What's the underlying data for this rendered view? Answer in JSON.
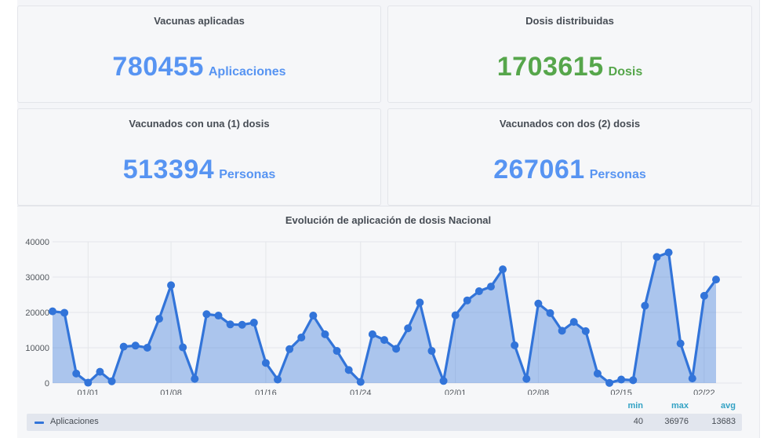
{
  "stat_panels": [
    {
      "title": "Vacunas aplicadas",
      "value": "780455",
      "unit": "Aplicaciones",
      "color": "#5794f2"
    },
    {
      "title": "Dosis distribuidas",
      "value": "1703615",
      "unit": "Dosis",
      "color": "#56a64b"
    },
    {
      "title": "Vacunados con una (1) dosis",
      "value": "513394",
      "unit": "Personas",
      "color": "#5794f2"
    },
    {
      "title": "Vacunados con dos (2) dosis",
      "value": "267061",
      "unit": "Personas",
      "color": "#5794f2"
    }
  ],
  "chart_panel": {
    "title": "Evolución de aplicación de dosis Nacional",
    "legend": {
      "series_label": "Aplicaciones",
      "headers": {
        "min": "min",
        "max": "max",
        "avg": "avg"
      },
      "values": {
        "min": "40",
        "max": "36976",
        "avg": "13683"
      }
    }
  },
  "chart_data": {
    "type": "area",
    "title": "Evolución de aplicación de dosis Nacional",
    "xlabel": "",
    "ylabel": "",
    "ylim": [
      0,
      40000
    ],
    "yticks": [
      0,
      10000,
      20000,
      30000,
      40000
    ],
    "xtick_labels": [
      "01/01",
      "01/08",
      "01/16",
      "01/24",
      "02/01",
      "02/08",
      "02/15",
      "02/22"
    ],
    "grid": true,
    "legend_position": "bottom",
    "series": [
      {
        "name": "Aplicaciones",
        "color": "#3274d9",
        "x": [
          "12/29",
          "12/30",
          "12/31",
          "01/01",
          "01/02",
          "01/03",
          "01/04",
          "01/05",
          "01/06",
          "01/07",
          "01/08",
          "01/09",
          "01/10",
          "01/11",
          "01/12",
          "01/13",
          "01/14",
          "01/15",
          "01/16",
          "01/17",
          "01/18",
          "01/19",
          "01/20",
          "01/21",
          "01/22",
          "01/23",
          "01/24",
          "01/25",
          "01/26",
          "01/27",
          "01/28",
          "01/29",
          "01/30",
          "01/31",
          "02/01",
          "02/02",
          "02/03",
          "02/04",
          "02/05",
          "02/06",
          "02/07",
          "02/08",
          "02/09",
          "02/10",
          "02/11",
          "02/12",
          "02/13",
          "02/14",
          "02/15",
          "02/16",
          "02/17",
          "02/18",
          "02/19",
          "02/20",
          "02/21",
          "02/22",
          "02/23"
        ],
        "values": [
          20300,
          19900,
          2700,
          100,
          3200,
          500,
          10300,
          10600,
          10000,
          18200,
          27700,
          10100,
          1200,
          19500,
          19100,
          16600,
          16500,
          17100,
          5700,
          1000,
          9600,
          12900,
          19100,
          13800,
          9100,
          3700,
          300,
          13800,
          12200,
          9700,
          15500,
          22800,
          9100,
          600,
          19200,
          23400,
          26000,
          27300,
          32200,
          10700,
          1200,
          22500,
          19800,
          14800,
          17300,
          14700,
          2700,
          40,
          1000,
          800,
          21900,
          35700,
          36976,
          11200,
          1300,
          24700,
          29300
        ]
      }
    ],
    "summary": {
      "min": 40,
      "max": 36976,
      "avg": 13683
    }
  }
}
